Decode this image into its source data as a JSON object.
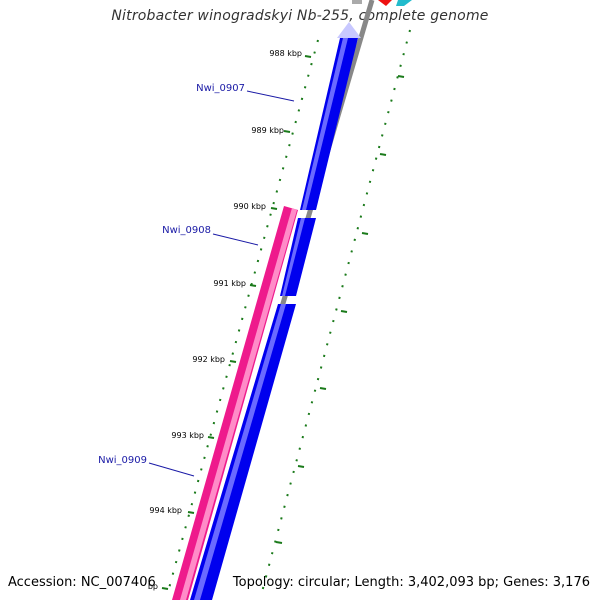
{
  "title": "Nitrobacter winogradskyi Nb-255, complete genome",
  "accession": "Accession: NC_007406",
  "topology": "Topology: circular; Length: 3,402,093 bp; Genes: 3,176",
  "colors": {
    "forward_gene": "#0000ee",
    "reverse_gene": "#ee1a8c",
    "backbone": "#888888",
    "tick": "#1a7a1a",
    "label": "#1a1aa6"
  },
  "kbp_labels": [
    "988 kbp",
    "989 kbp",
    "990 kbp",
    "991 kbp",
    "992 kbp",
    "993 kbp",
    "994 kbp"
  ],
  "partial_label": "bp",
  "genes": [
    {
      "name": "Nwi_0907",
      "strand": "forward"
    },
    {
      "name": "Nwi_0908",
      "strand": "forward"
    },
    {
      "name": "Nwi_0909",
      "strand": "reverse"
    }
  ]
}
